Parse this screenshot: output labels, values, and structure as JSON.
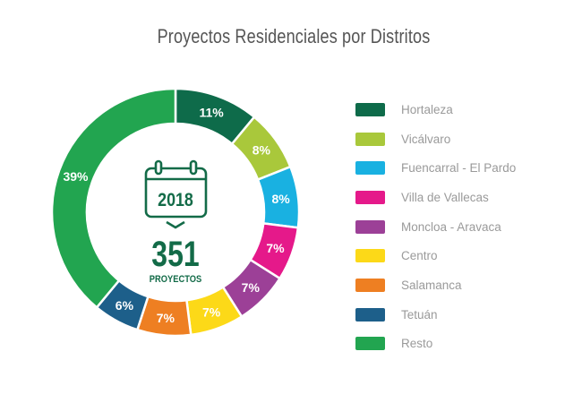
{
  "chart_data": {
    "type": "pie",
    "subtype": "donut",
    "title": "Proyectos Residenciales por Distritos",
    "center": {
      "year": "2018",
      "total": "351",
      "total_label": "PROYECTOS",
      "icon": "calendar-icon"
    },
    "categories": [
      "Hortaleza",
      "Vicálvaro",
      "Fuencarral - El Pardo",
      "Villa de Vallecas",
      "Moncloa - Aravaca",
      "Centro",
      "Salamanca",
      "Tetuán",
      "Resto"
    ],
    "values": [
      11,
      8,
      8,
      7,
      7,
      7,
      7,
      6,
      39
    ],
    "labels": [
      "11%",
      "8%",
      "8%",
      "7%",
      "7%",
      "7%",
      "7%",
      "6%",
      "39%"
    ],
    "colors": [
      "#0e6b4a",
      "#a9c83b",
      "#19b1e1",
      "#e5198a",
      "#9c4097",
      "#fcd918",
      "#ee7f22",
      "#1d5f8a",
      "#22a550"
    ],
    "legend_position": "right"
  }
}
